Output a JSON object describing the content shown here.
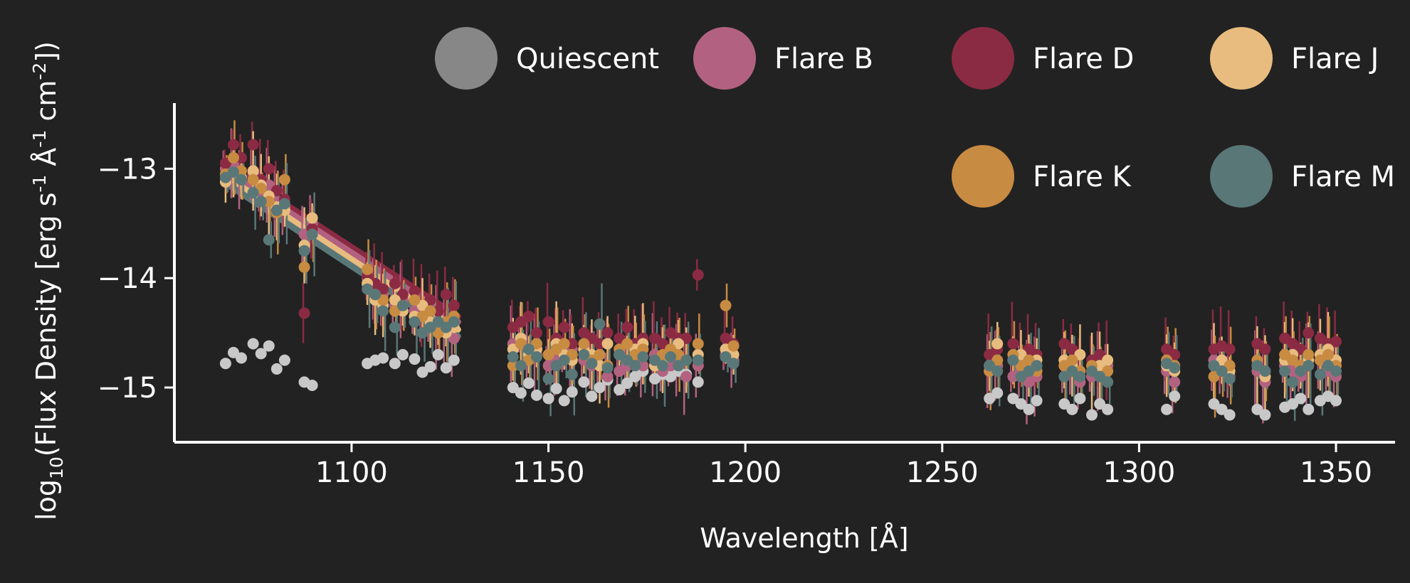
{
  "chart_data": {
    "type": "scatter",
    "title": "",
    "xlabel": "Wavelength [Å]",
    "ylabel": "log10(Flux Density [erg s-1 Å-1 cm-2])",
    "ylabel_parts": {
      "pre": "log",
      "sub": "10",
      "mid1": "(Flux Density [erg s",
      "sup1": "-1",
      "mid2": " Å",
      "sup2": "-1",
      "mid3": " cm",
      "sup3": "-2",
      "post": "])"
    },
    "xlim": [
      1055,
      1365
    ],
    "ylim": [
      -15.5,
      -12.4
    ],
    "xticks": [
      1100,
      1150,
      1200,
      1250,
      1300,
      1350
    ],
    "xtick_labels": [
      "1100",
      "1150",
      "1200",
      "1250",
      "1300",
      "1350"
    ],
    "yticks": [
      -13,
      -14,
      -15
    ],
    "ytick_labels": [
      "−13",
      "−14",
      "−15"
    ],
    "grid": false,
    "legend_position": "top",
    "x": [
      1068,
      1070,
      1072,
      1075,
      1077,
      1079,
      1081,
      1083,
      1088,
      1090,
      1104,
      1106,
      1108,
      1111,
      1113,
      1116,
      1118,
      1120,
      1122,
      1124,
      1126,
      1141,
      1143,
      1145,
      1147,
      1150,
      1152,
      1154,
      1156,
      1159,
      1161,
      1163,
      1165,
      1168,
      1170,
      1172,
      1174,
      1177,
      1179,
      1181,
      1183,
      1185,
      1188,
      1195,
      1197,
      1262,
      1264,
      1268,
      1270,
      1272,
      1274,
      1281,
      1283,
      1285,
      1288,
      1290,
      1292,
      1307,
      1309,
      1319,
      1321,
      1323,
      1330,
      1332,
      1337,
      1339,
      1341,
      1343,
      1346,
      1348,
      1350
    ],
    "series": [
      {
        "name": "Quiescent",
        "color": "#878787",
        "values": [
          -14.78,
          -14.68,
          -14.73,
          -14.6,
          -14.69,
          -14.62,
          -14.83,
          -14.75,
          -14.95,
          -14.98,
          -14.78,
          -14.75,
          -14.73,
          -14.78,
          -14.7,
          -14.74,
          -14.86,
          -14.81,
          -14.7,
          -14.82,
          -14.75,
          -15.0,
          -15.05,
          -14.96,
          -15.07,
          -15.1,
          -15.01,
          -15.12,
          -15.04,
          -14.95,
          -15.08,
          -15.0,
          -14.93,
          -15.02,
          -14.96,
          -14.9,
          -14.85,
          -14.92,
          -14.88,
          -14.9,
          -14.85,
          -14.88,
          -14.95,
          -14.72,
          -14.77,
          -15.1,
          -15.05,
          -15.1,
          -15.15,
          -15.2,
          -15.12,
          -15.15,
          -15.2,
          -15.1,
          -15.25,
          -15.15,
          -15.2,
          -15.2,
          -15.08,
          -15.15,
          -15.2,
          -15.25,
          -15.2,
          -15.25,
          -15.18,
          -15.15,
          -15.1,
          -15.2,
          -15.12,
          -15.08,
          -15.12
        ]
      },
      {
        "name": "Flare B",
        "color": "#b26280",
        "values": [
          -13.0,
          -12.95,
          -13.1,
          -13.05,
          -13.2,
          -13.15,
          -13.3,
          -13.35,
          -13.6,
          -13.5,
          -14.0,
          -14.1,
          -14.15,
          -14.25,
          -14.2,
          -14.3,
          -14.35,
          -14.4,
          -14.45,
          -14.5,
          -14.55,
          -14.6,
          -14.55,
          -14.65,
          -14.7,
          -14.8,
          -14.75,
          -14.7,
          -14.65,
          -14.75,
          -14.8,
          -14.7,
          -14.9,
          -14.85,
          -14.8,
          -14.75,
          -14.8,
          -14.7,
          -14.85,
          -14.8,
          -14.75,
          -14.9,
          -14.8,
          -14.7,
          -14.75,
          -14.85,
          -14.8,
          -14.9,
          -14.85,
          -14.95,
          -14.9,
          -14.8,
          -14.85,
          -14.95,
          -14.9,
          -14.85,
          -14.8,
          -14.85,
          -14.95,
          -14.75,
          -14.8,
          -14.9,
          -14.85,
          -14.95,
          -14.8,
          -14.85,
          -14.9,
          -14.8,
          -14.75,
          -14.85,
          -14.9
        ]
      },
      {
        "name": "Flare D",
        "color": "#8b2b43",
        "values": [
          -12.95,
          -12.78,
          -12.9,
          -12.78,
          -13.1,
          -13.0,
          -13.2,
          -13.28,
          -14.32,
          -13.55,
          -13.98,
          -14.05,
          -14.1,
          -14.05,
          -14.15,
          -14.12,
          -14.25,
          -14.2,
          -14.3,
          -14.15,
          -14.25,
          -14.45,
          -14.4,
          -14.35,
          -14.5,
          -14.4,
          -14.55,
          -14.45,
          -14.6,
          -14.5,
          -14.55,
          -14.6,
          -14.5,
          -14.55,
          -14.45,
          -14.6,
          -14.55,
          -14.55,
          -14.6,
          -14.5,
          -14.55,
          -14.55,
          -13.97,
          -14.55,
          -14.6,
          -14.7,
          -14.65,
          -14.6,
          -14.7,
          -14.65,
          -14.7,
          -14.6,
          -14.65,
          -14.7,
          -14.75,
          -14.7,
          -14.75,
          -14.65,
          -14.7,
          -14.65,
          -14.62,
          -14.65,
          -14.6,
          -14.65,
          -14.55,
          -14.6,
          -14.65,
          -14.5,
          -14.55,
          -14.6,
          -14.58
        ]
      },
      {
        "name": "Flare J",
        "color": "#e8bc7e",
        "values": [
          -13.12,
          -13.03,
          -13.08,
          -13.02,
          -13.15,
          -13.25,
          -13.35,
          -13.38,
          -13.7,
          -13.45,
          -14.05,
          -14.2,
          -14.25,
          -14.2,
          -14.3,
          -14.35,
          -14.25,
          -14.4,
          -14.45,
          -14.5,
          -14.45,
          -14.65,
          -14.55,
          -14.7,
          -14.65,
          -14.7,
          -14.6,
          -14.7,
          -14.75,
          -14.65,
          -14.7,
          -14.8,
          -14.6,
          -14.7,
          -14.75,
          -14.65,
          -14.6,
          -14.8,
          -14.75,
          -14.7,
          -14.6,
          -14.75,
          -14.7,
          -14.65,
          -14.7,
          -14.8,
          -14.6,
          -14.75,
          -14.7,
          -14.8,
          -14.75,
          -14.75,
          -14.8,
          -14.7,
          -14.85,
          -14.8,
          -14.75,
          -14.8,
          -14.85,
          -14.8,
          -14.75,
          -14.85,
          -14.8,
          -14.9,
          -14.75,
          -14.7,
          -14.8,
          -14.75,
          -14.7,
          -14.65,
          -14.75
        ]
      },
      {
        "name": "Flare K",
        "color": "#c88b42",
        "values": [
          -13.05,
          -12.9,
          -13.02,
          -13.1,
          -13.18,
          -13.3,
          -13.4,
          -13.1,
          -13.9,
          -13.6,
          -13.92,
          -14.15,
          -14.2,
          -14.3,
          -14.25,
          -14.2,
          -14.35,
          -14.3,
          -14.5,
          -14.4,
          -14.35,
          -14.8,
          -14.6,
          -14.75,
          -14.6,
          -14.7,
          -14.65,
          -14.6,
          -14.7,
          -14.6,
          -14.75,
          -14.7,
          -14.8,
          -14.65,
          -14.6,
          -14.7,
          -14.65,
          -14.75,
          -14.7,
          -14.65,
          -14.7,
          -14.75,
          -14.6,
          -14.25,
          -14.62,
          -14.85,
          -14.75,
          -14.7,
          -14.8,
          -14.75,
          -14.85,
          -14.8,
          -14.75,
          -14.85,
          -14.8,
          -14.9,
          -14.85,
          -14.75,
          -14.8,
          -14.9,
          -14.85,
          -14.8,
          -14.75,
          -14.85,
          -14.7,
          -14.75,
          -14.8,
          -14.7,
          -14.75,
          -14.7,
          -14.8
        ]
      },
      {
        "name": "Flare M",
        "color": "#5a7777",
        "values": [
          -13.08,
          -13.03,
          -13.1,
          -13.22,
          -13.3,
          -13.65,
          -13.38,
          -13.32,
          -13.75,
          -13.6,
          -14.1,
          -14.15,
          -14.3,
          -14.45,
          -14.25,
          -14.4,
          -14.5,
          -14.45,
          -14.4,
          -14.45,
          -14.4,
          -14.72,
          -14.8,
          -14.65,
          -14.72,
          -14.92,
          -14.8,
          -14.75,
          -14.88,
          -14.7,
          -14.78,
          -14.42,
          -14.82,
          -14.7,
          -14.75,
          -14.8,
          -14.72,
          -14.75,
          -14.8,
          -14.72,
          -14.8,
          -14.75,
          -14.75,
          -14.72,
          -14.78,
          -14.8,
          -14.85,
          -14.75,
          -14.9,
          -14.85,
          -14.8,
          -14.9,
          -14.85,
          -14.9,
          -14.85,
          -14.9,
          -14.95,
          -14.78,
          -14.82,
          -14.8,
          -14.85,
          -14.92,
          -14.8,
          -14.85,
          -14.85,
          -14.95,
          -14.85,
          -14.8,
          -14.88,
          -14.8,
          -14.85
        ]
      }
    ],
    "error_bar_series": [
      "Flare B",
      "Flare D",
      "Flare J",
      "Flare K",
      "Flare M"
    ],
    "trend_lines": [
      {
        "series": "Flare D",
        "x": [
          1068,
          1127
        ],
        "y": [
          -12.97,
          -14.35
        ]
      },
      {
        "series": "Flare B",
        "x": [
          1068,
          1127
        ],
        "y": [
          -13.02,
          -14.4
        ]
      },
      {
        "series": "Flare J",
        "x": [
          1068,
          1127
        ],
        "y": [
          -13.07,
          -14.47
        ]
      },
      {
        "series": "Flare M",
        "x": [
          1068,
          1127
        ],
        "y": [
          -13.13,
          -14.53
        ]
      }
    ]
  }
}
